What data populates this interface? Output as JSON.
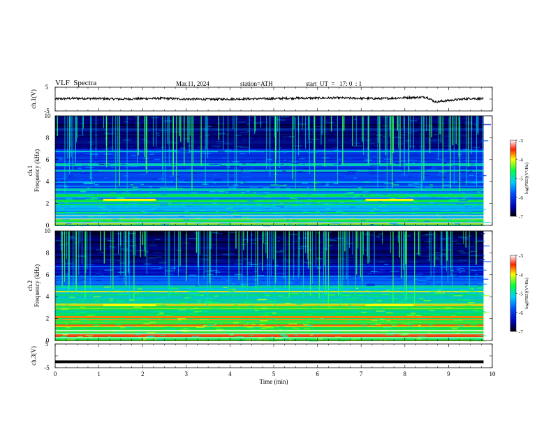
{
  "header": {
    "title": "VLF  Spectra",
    "date": "Mar.11, 2024",
    "station": "station=ATH",
    "start": "start  UT  =   17: 0  : 1"
  },
  "chart_data": [
    {
      "type": "line",
      "id": "ch1-waveform",
      "ylabel": "ch.1(V)",
      "ylim": [
        -5,
        5
      ],
      "yticks": [
        "5",
        "-5"
      ],
      "xlim": [
        0,
        10
      ],
      "x": [
        0,
        0.5,
        1,
        1.5,
        2,
        2.5,
        3,
        3.5,
        4,
        4.5,
        5,
        5.5,
        6,
        6.5,
        7,
        7.5,
        8,
        8.5,
        8.7,
        9,
        9.5,
        9.8
      ],
      "y": [
        0.1,
        0.3,
        0.2,
        0.0,
        0.2,
        0.3,
        0.0,
        -0.1,
        0.0,
        0.1,
        0.2,
        0.4,
        0.4,
        0.5,
        0.3,
        0.2,
        0.6,
        0.8,
        -1.2,
        -0.6,
        0.3,
        0.1
      ]
    },
    {
      "type": "heatmap",
      "id": "ch1-spectrogram",
      "ylabel": "ch.1\nFrequency (kHz)",
      "ylim": [
        0,
        10
      ],
      "yticks": [
        "0",
        "2",
        "4",
        "6",
        "8",
        "10"
      ],
      "xlim": [
        0,
        9.8
      ],
      "colorbar": {
        "label": "log(PSD)(V²/Hz)",
        "range": [
          -7,
          -3
        ],
        "ticks": [
          "-3",
          "-4",
          "-5",
          "-6",
          "-7"
        ]
      },
      "bands_kHz": [
        0.2,
        0.5,
        1.2,
        2.0,
        2.3,
        2.8,
        3.3,
        4.0,
        5.0,
        5.6,
        6.8,
        8.8
      ],
      "enhanced_intervals_min": [
        [
          1.1,
          2.3
        ],
        [
          7.1,
          8.2
        ]
      ]
    },
    {
      "type": "heatmap",
      "id": "ch2-spectrogram",
      "ylabel": "ch.2\nFrequency (kHz)",
      "ylim": [
        0,
        10
      ],
      "yticks": [
        "0",
        "2",
        "4",
        "6",
        "8",
        "10"
      ],
      "xlim": [
        0,
        9.8
      ],
      "colorbar": {
        "label": "log(PSD)(V²/Hz)",
        "range": [
          -7,
          -3
        ],
        "ticks": [
          "-3",
          "-4",
          "-5",
          "-6",
          "-7"
        ]
      },
      "bands_kHz": [
        0.5,
        1.4,
        2.0,
        2.2,
        3.0,
        3.3,
        4.5,
        5.0,
        6.8
      ],
      "enhanced_intervals_min": [
        [
          1.1,
          2.3
        ],
        [
          7.1,
          8.2
        ]
      ]
    },
    {
      "type": "line",
      "id": "ch3-waveform",
      "ylabel": "ch.3(V)",
      "ylim": [
        -5,
        5
      ],
      "yticks": [
        "5",
        "-5"
      ],
      "xlim": [
        0,
        10
      ],
      "x": [
        0,
        9.8
      ],
      "y": [
        -2.5,
        -2.5
      ]
    }
  ],
  "xaxis": {
    "label": "Time  (min)",
    "ticks": [
      "0",
      "1",
      "2",
      "3",
      "4",
      "5",
      "6",
      "7",
      "8",
      "9",
      "10"
    ],
    "range": [
      0,
      10
    ]
  }
}
